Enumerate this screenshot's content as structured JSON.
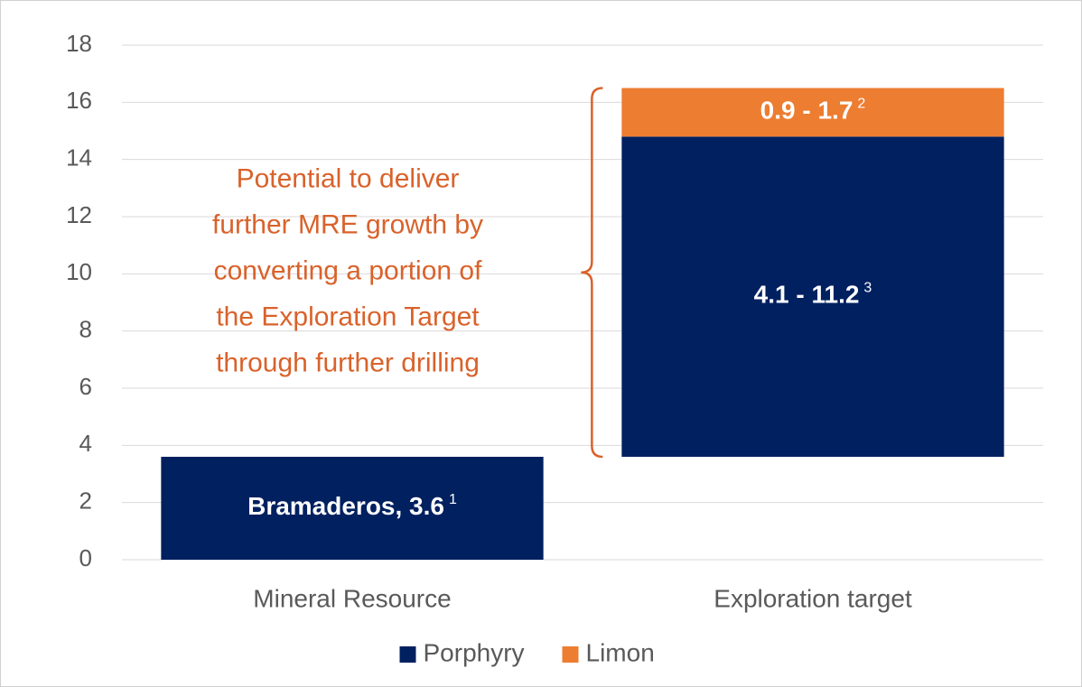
{
  "chart_data": {
    "type": "waterfall",
    "categories": [
      "Mineral Resource",
      "Exploration target"
    ],
    "series": [
      {
        "name": "Porphyry",
        "color": "#002060",
        "values": [
          3.6,
          11.2
        ],
        "value_labels": [
          "Bramaderos, 3.6",
          "4.1 - 11.2"
        ],
        "value_label_notes": [
          "1",
          "3"
        ]
      },
      {
        "name": "Limon",
        "color": "#ed7d31",
        "values": [
          null,
          1.7
        ],
        "value_labels": [
          null,
          "0.9 - 1.7"
        ],
        "value_label_notes": [
          null,
          "2"
        ]
      }
    ],
    "ylim": [
      0,
      18
    ],
    "yticks": [
      0,
      2,
      4,
      6,
      8,
      10,
      12,
      14,
      16,
      18
    ],
    "grid": true,
    "legend": "bottom",
    "annotation": {
      "lines": [
        "Potential to deliver",
        "further MRE growth by",
        "converting a portion of",
        "the Exploration Target",
        "through further drilling"
      ],
      "color": "#d9622b"
    }
  }
}
